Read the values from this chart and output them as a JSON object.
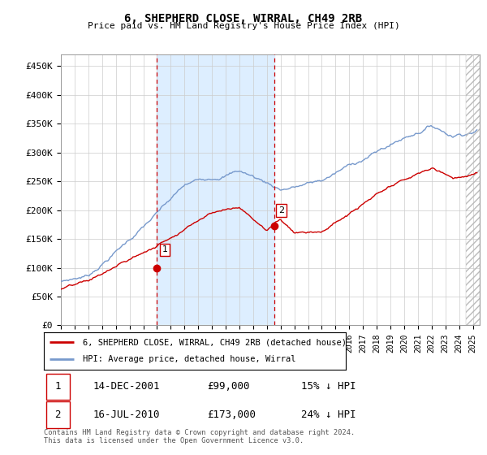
{
  "title": "6, SHEPHERD CLOSE, WIRRAL, CH49 2RB",
  "subtitle": "Price paid vs. HM Land Registry's House Price Index (HPI)",
  "ytick_values": [
    0,
    50000,
    100000,
    150000,
    200000,
    250000,
    300000,
    350000,
    400000,
    450000
  ],
  "ylim": [
    0,
    470000
  ],
  "xlim_start": 1995.0,
  "xlim_end": 2025.5,
  "hpi_color": "#7799cc",
  "price_color": "#cc0000",
  "shaded_color": "#ddeeff",
  "transaction1_x": 2001.95,
  "transaction1_y": 99000,
  "transaction1_label": "1",
  "transaction2_x": 2010.54,
  "transaction2_y": 173000,
  "transaction2_label": "2",
  "legend_line1": "6, SHEPHERD CLOSE, WIRRAL, CH49 2RB (detached house)",
  "legend_line2": "HPI: Average price, detached house, Wirral",
  "table_row1": [
    "1",
    "14-DEC-2001",
    "£99,000",
    "15% ↓ HPI"
  ],
  "table_row2": [
    "2",
    "16-JUL-2010",
    "£173,000",
    "24% ↓ HPI"
  ],
  "footnote": "Contains HM Land Registry data © Crown copyright and database right 2024.\nThis data is licensed under the Open Government Licence v3.0.",
  "hatch_color": "#aaaaaa",
  "grid_color": "#cccccc"
}
